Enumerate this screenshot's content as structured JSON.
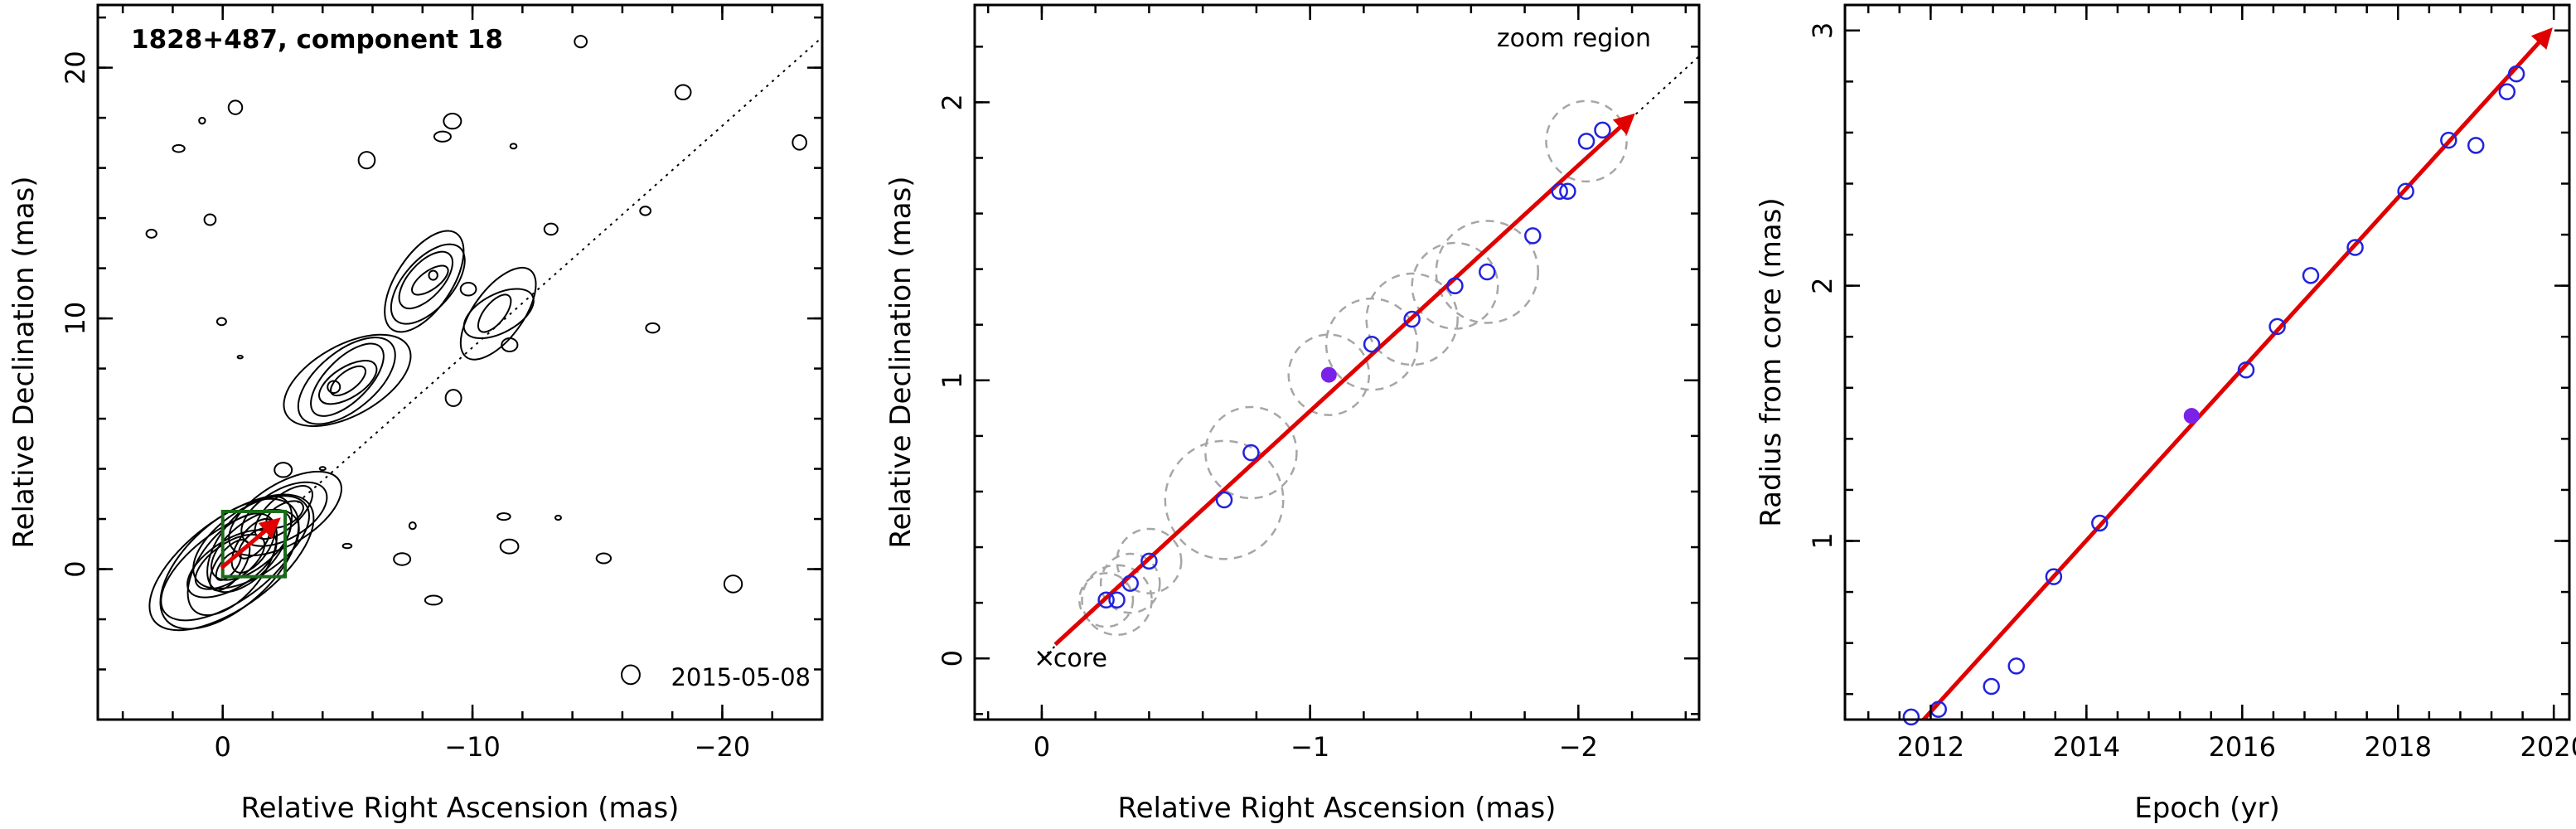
{
  "colors": {
    "arrow": "#e00000",
    "open_points": "#2222dd",
    "filled_point": "#7a22e8",
    "rings": "#a6a6a6",
    "box": "#1a6a1a",
    "contours": "#000000"
  },
  "chart_data": [
    {
      "type": "contour",
      "title": "1828+487, component 18",
      "annotation": "2015-05-08",
      "xlabel": "Relative Right Ascension (mas)",
      "ylabel": "Relative Declination (mas)",
      "xlim": [
        5,
        -24
      ],
      "ylim": [
        -6,
        22.5
      ],
      "xticks": [
        0,
        -10,
        -20
      ],
      "xtick_labels": [
        "0",
        "−10",
        "−20"
      ],
      "yticks": [
        0,
        10,
        20
      ],
      "ytick_labels": [
        "0",
        "10",
        "20"
      ],
      "reference_line": {
        "style": "dotted",
        "from": [
          0,
          0
        ],
        "slope": 0.884
      },
      "zoom_box": {
        "x": [
          0,
          -2.5
        ],
        "y": [
          -0.3,
          2.3
        ]
      },
      "arrow": {
        "from": [
          0.05,
          0.05
        ],
        "to": [
          -2.2,
          1.95
        ]
      },
      "features": [
        {
          "x": -0.3,
          "y": 0.2,
          "levels": 8
        },
        {
          "x": -1.2,
          "y": 1.0,
          "levels": 5
        },
        {
          "x": -2.4,
          "y": 2.2,
          "levels": 4
        },
        {
          "x": -5.0,
          "y": 7.5,
          "levels": 5
        },
        {
          "x": -8.2,
          "y": 11.5,
          "levels": 4
        },
        {
          "x": -11.0,
          "y": 10.2,
          "levels": 3
        }
      ]
    },
    {
      "type": "scatter",
      "annotation_top": "zoom region",
      "core_label": "core",
      "xlabel": "Relative Right Ascension (mas)",
      "ylabel": "Relative Declination (mas)",
      "xlim": [
        0.25,
        -2.45
      ],
      "ylim": [
        -0.22,
        2.35
      ],
      "xticks": [
        0,
        -1,
        -2
      ],
      "xtick_labels": [
        "0",
        "−1",
        "−2"
      ],
      "yticks": [
        0,
        1,
        2
      ],
      "yticks_labels": [
        "0",
        "1",
        "2"
      ],
      "reference_line": {
        "style": "dotted",
        "from": [
          0,
          0
        ],
        "slope": 0.884
      },
      "arrow": {
        "from": [
          -0.05,
          0.05
        ],
        "to": [
          -2.2,
          1.95
        ]
      },
      "points": [
        {
          "x": -0.24,
          "y": 0.21,
          "r": 0.1
        },
        {
          "x": -0.28,
          "y": 0.21,
          "r": 0.13
        },
        {
          "x": -0.33,
          "y": 0.27,
          "r": 0.11
        },
        {
          "x": -0.4,
          "y": 0.35,
          "r": 0.12
        },
        {
          "x": -0.68,
          "y": 0.57,
          "r": 0.22
        },
        {
          "x": -0.78,
          "y": 0.74,
          "r": 0.17
        },
        {
          "x": -1.07,
          "y": 1.02,
          "r": 0.15,
          "filled": true
        },
        {
          "x": -1.23,
          "y": 1.13,
          "r": 0.17
        },
        {
          "x": -1.38,
          "y": 1.22,
          "r": 0.17
        },
        {
          "x": -1.54,
          "y": 1.34,
          "r": 0.16
        },
        {
          "x": -1.66,
          "y": 1.39,
          "r": 0.19
        },
        {
          "x": -1.83,
          "y": 1.52,
          "r": 0.0
        },
        {
          "x": -1.93,
          "y": 1.68,
          "r": 0.0
        },
        {
          "x": -1.96,
          "y": 1.68,
          "r": 0.0
        },
        {
          "x": -2.03,
          "y": 1.86,
          "r": 0.15
        },
        {
          "x": -2.09,
          "y": 1.9,
          "r": 0.0
        }
      ]
    },
    {
      "type": "scatter",
      "xlabel": "Epoch (yr)",
      "ylabel": "Radius from core (mas)",
      "xlim": [
        2010.9,
        2020.2
      ],
      "ylim": [
        0.3,
        3.1
      ],
      "xticks": [
        2012,
        2014,
        2016,
        2018,
        2020
      ],
      "xtick_labels": [
        "2012",
        "2014",
        "2016",
        "2018",
        "2020"
      ],
      "yticks": [
        1,
        2,
        3
      ],
      "ytick_labels": [
        "1",
        "2",
        "3"
      ],
      "arrow": {
        "from": [
          2011.85,
          0.28
        ],
        "to": [
          2019.95,
          3.0
        ]
      },
      "points": [
        {
          "x": 2011.75,
          "y": 0.31
        },
        {
          "x": 2012.1,
          "y": 0.34
        },
        {
          "x": 2012.78,
          "y": 0.43
        },
        {
          "x": 2013.1,
          "y": 0.51
        },
        {
          "x": 2013.58,
          "y": 0.86
        },
        {
          "x": 2014.17,
          "y": 1.07
        },
        {
          "x": 2015.35,
          "y": 1.49,
          "filled": true
        },
        {
          "x": 2016.05,
          "y": 1.67
        },
        {
          "x": 2016.45,
          "y": 1.84
        },
        {
          "x": 2016.88,
          "y": 2.04
        },
        {
          "x": 2017.45,
          "y": 2.15
        },
        {
          "x": 2018.1,
          "y": 2.37
        },
        {
          "x": 2018.65,
          "y": 2.57
        },
        {
          "x": 2019.0,
          "y": 2.55
        },
        {
          "x": 2019.4,
          "y": 2.76
        },
        {
          "x": 2019.52,
          "y": 2.83
        }
      ]
    }
  ]
}
